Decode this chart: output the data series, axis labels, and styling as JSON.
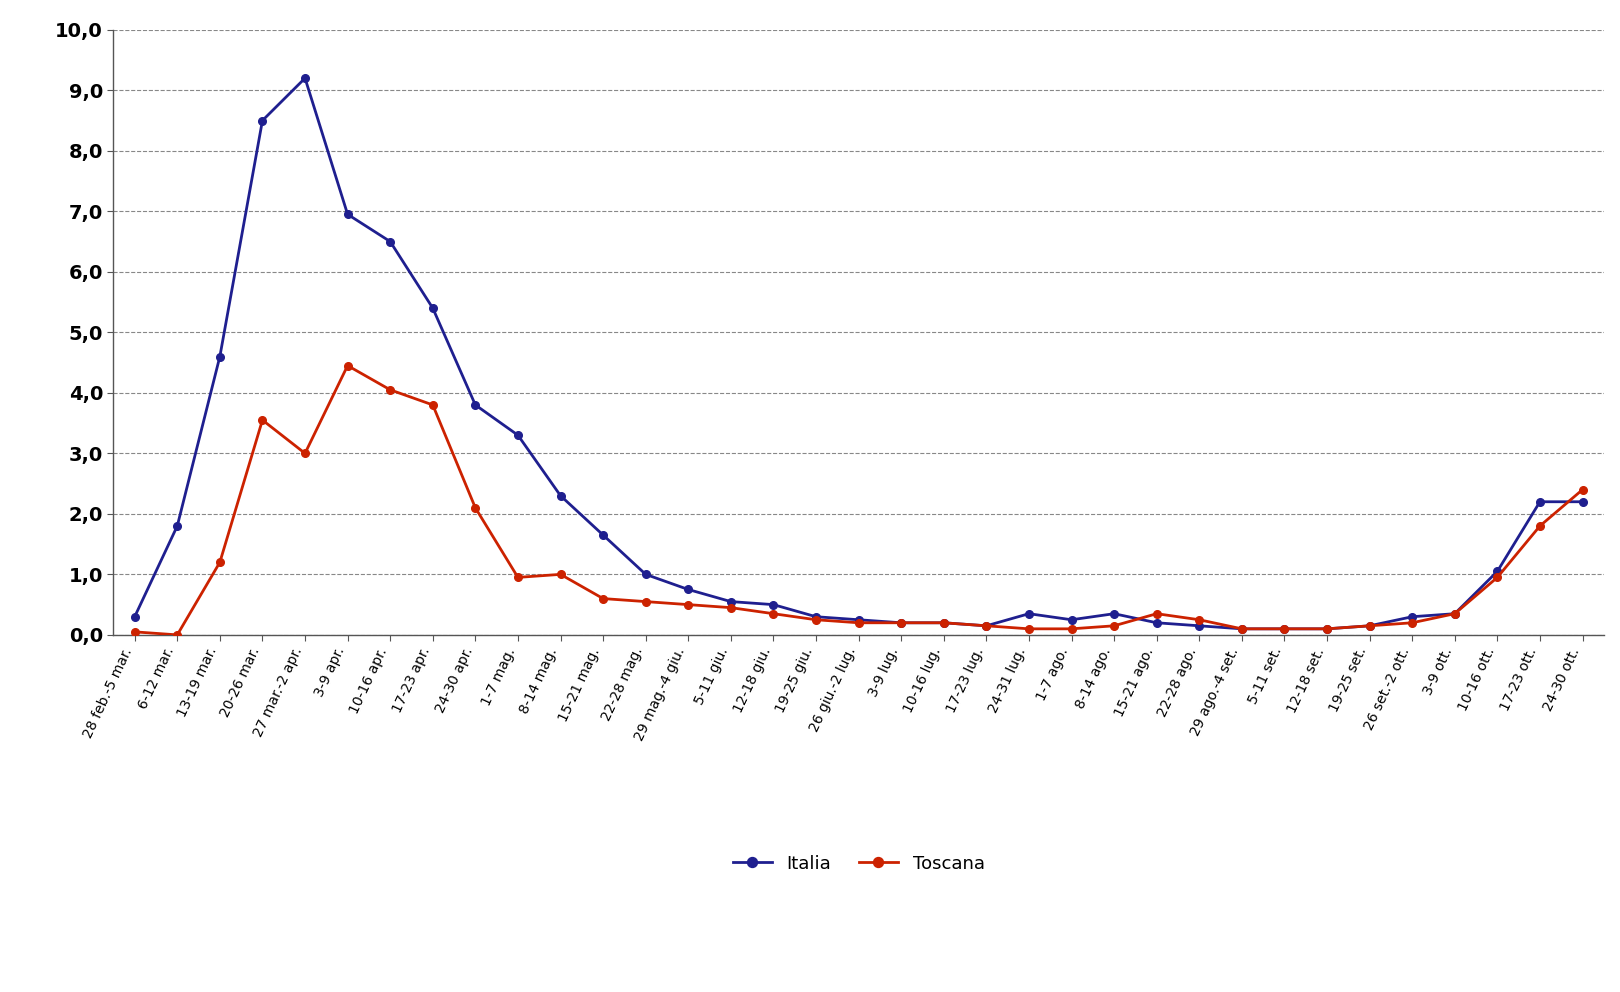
{
  "categories": [
    "28 feb.-5 mar.",
    "6-12 mar.",
    "13-19 mar.",
    "20-26 mar.",
    "27 mar.-2 apr.",
    "3-9 apr.",
    "10-16 apr.",
    "17-23 apr.",
    "24-30 apr.",
    "1-7 mag.",
    "8-14 mag.",
    "15-21 mag.",
    "22-28 mag.",
    "29 mag.-4 giu.",
    "5-11 giu.",
    "12-18 giu.",
    "19-25 giu.",
    "26 giu.-2 lug.",
    "3-9 lug.",
    "10-16 lug.",
    "17-23 lug.",
    "24-31 lug.",
    "1-7 ago.",
    "8-14 ago.",
    "15-21 ago.",
    "22-28 ago.",
    "29 ago.-4 set.",
    "5-11 set.",
    "12-18 set.",
    "19-25 set.",
    "26 set.-2 ott.",
    "3-9 ott.",
    "10-16 ott.",
    "17-23 ott.",
    "24-30 ott."
  ],
  "italia": [
    0.3,
    1.8,
    4.6,
    8.5,
    9.2,
    6.95,
    6.5,
    5.4,
    3.8,
    3.3,
    2.3,
    1.65,
    1.0,
    0.75,
    0.55,
    0.5,
    0.3,
    0.25,
    0.2,
    0.2,
    0.15,
    0.35,
    0.25,
    0.35,
    0.2,
    0.15,
    0.1,
    0.1,
    0.1,
    0.15,
    0.3,
    0.35,
    1.05,
    2.2,
    2.2
  ],
  "toscana": [
    0.05,
    0.0,
    1.2,
    3.55,
    3.0,
    4.45,
    4.05,
    3.8,
    2.1,
    0.95,
    1.0,
    0.6,
    0.55,
    0.5,
    0.45,
    0.35,
    0.25,
    0.2,
    0.2,
    0.2,
    0.15,
    0.1,
    0.1,
    0.15,
    0.35,
    0.25,
    0.1,
    0.1,
    0.1,
    0.15,
    0.2,
    0.35,
    0.95,
    1.8,
    2.4
  ],
  "italia_color": "#1f1f8f",
  "toscana_color": "#cc2200",
  "background_color": "#ffffff",
  "plot_bg_color": "#ffffff",
  "yticks": [
    0.0,
    1.0,
    2.0,
    3.0,
    4.0,
    5.0,
    6.0,
    7.0,
    8.0,
    9.0,
    10.0
  ],
  "ylim": [
    0.0,
    10.0
  ],
  "grid_color": "#888888",
  "legend_italia": "Italia",
  "legend_toscana": "Toscana",
  "ylabel_fontsize": 14,
  "xlabel_fontsize": 10,
  "legend_fontsize": 13
}
